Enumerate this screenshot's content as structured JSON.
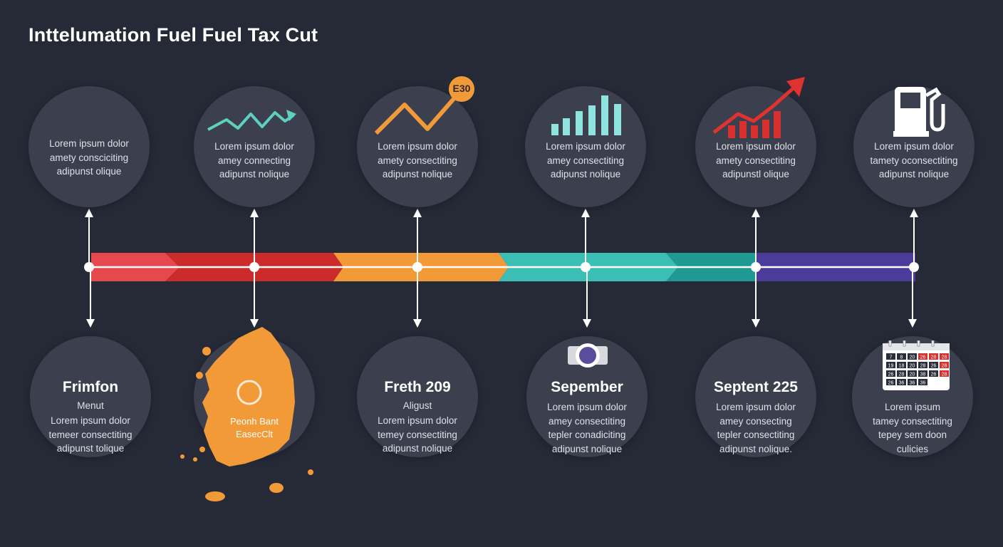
{
  "title": "Inttelumation Fuel Fuel Tax Cut",
  "colors": {
    "background": "#262a37",
    "circle": "#3b3f4e",
    "red": "#e5484d",
    "dark_red": "#cc2b2b",
    "orange": "#f39a38",
    "teal": "#3bbfb5",
    "dark_teal": "#1f9a92",
    "purple": "#4b3b9a"
  },
  "top_nodes": [
    {
      "icon": "blank",
      "lines": [
        "Lorem ipsum dolor",
        "amety consciciting",
        "adipunst olique"
      ]
    },
    {
      "icon": "teal-zigzag-arrow-icon",
      "lines": [
        "Lorem ipsum dolor",
        "amey connecting",
        "adipunst nolique"
      ]
    },
    {
      "icon": "orange-trend-icon",
      "badge": "E30",
      "lines": [
        "Lorem ipsum dolor",
        "amety consectiting",
        "adipunst nolique"
      ]
    },
    {
      "icon": "bar-chart-icon",
      "lines": [
        "Lorem ipsum dolor",
        "amey consectiting",
        "adipunst nolique"
      ]
    },
    {
      "icon": "red-rising-chart-icon",
      "lines": [
        "Lorem ipsum dolor",
        "amety consectiting",
        "adipunstl olique"
      ]
    },
    {
      "icon": "fuel-pump-icon",
      "lines": [
        "Lorem ipsum dolor",
        "tamety oconsectiting",
        "adipunst nolique"
      ]
    }
  ],
  "bottom_nodes": [
    {
      "title": "Frimfon",
      "subtitle": "Menut",
      "lines": [
        "Lorem ipsum dolor",
        "temeer consectiting",
        "adipunst tolique"
      ]
    },
    {
      "title": "",
      "map_lines": [
        "Peonh Bant",
        "EasecClt"
      ],
      "lines": []
    },
    {
      "title": "Freth 209",
      "subtitle": "Aligust",
      "lines": [
        "Lorem ipsum dolor",
        "temey consectiting",
        "adipunst nolique"
      ]
    },
    {
      "title": "Sepember",
      "subtitle": "",
      "lines": [
        "Lorem ipsum dolor",
        "amey consectiting",
        "tepler conadiciting",
        "adipunst nolique"
      ]
    },
    {
      "title": "Septent 225",
      "subtitle": "",
      "lines": [
        "Lorem ipsum dolor",
        "amey consecting",
        "tepler consectiting",
        "adipunst nolique."
      ]
    },
    {
      "title": "",
      "subtitle": "",
      "lines": [
        "Lorem ipsum",
        "tamey consectiting",
        "tepey sem doon",
        "culicies"
      ]
    }
  ],
  "calendar": {
    "rows": [
      [
        "7",
        "8",
        "20",
        "26",
        "28",
        "28"
      ],
      [
        "19",
        "18",
        "20",
        "28",
        "26",
        "28"
      ],
      [
        "26",
        "28",
        "20",
        "38",
        "26",
        "28"
      ],
      [
        "26",
        "36",
        "36",
        "36"
      ]
    ]
  }
}
